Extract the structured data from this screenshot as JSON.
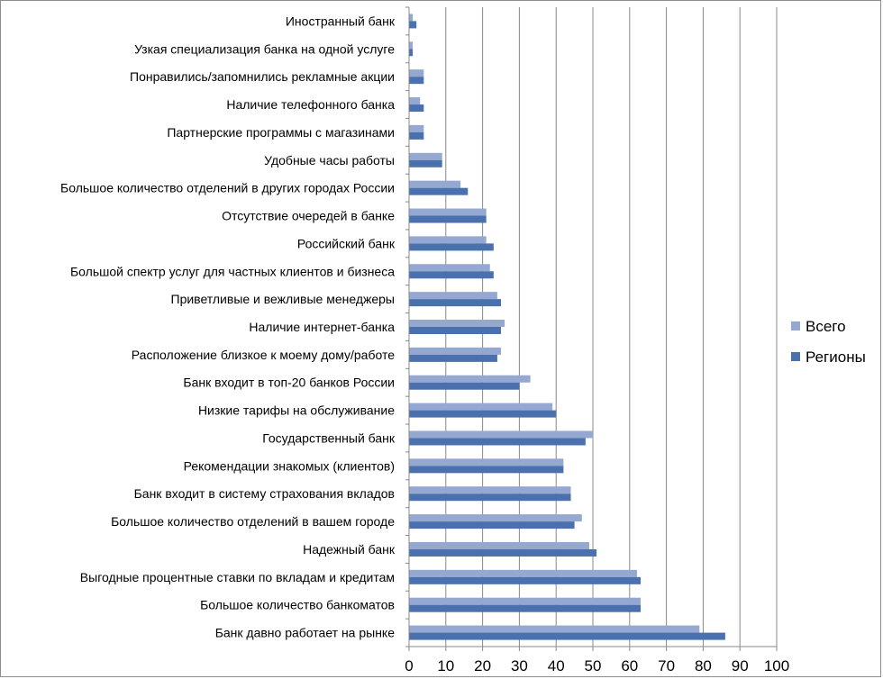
{
  "chart_data": {
    "type": "bar",
    "orientation": "horizontal",
    "categories": [
      "Иностранный банк",
      "Узкая специализация банка на одной услуге",
      "Понравились/запомнились рекламные акции",
      "Наличие телефонного банка",
      "Партнерские программы с магазинами",
      "Удобные часы работы",
      "Большое количество отделений в других городах России",
      "Отсутствие очередей в банке",
      "Российский банк",
      "Большой спектр услуг для частных клиентов и бизнеса",
      "Приветливые и вежливые менеджеры",
      "Наличие интернет-банка",
      "Расположение близкое к моему дому/работе",
      "Банк входит в топ-20 банков России",
      "Низкие тарифы на обслуживание",
      "Государственный банк",
      "Рекомендации знакомых (клиентов)",
      "Банк входит в систему страхования вкладов",
      "Большое количество отделений в вашем городе",
      "Надежный банк",
      "Выгодные процентные ставки по вкладам и кредитам",
      "Большое количество банкоматов",
      "Банк давно работает на рынке"
    ],
    "series": [
      {
        "name": "Всего",
        "color": "#94a8d2",
        "values": [
          1,
          1,
          4,
          3,
          4,
          9,
          14,
          21,
          21,
          22,
          24,
          26,
          25,
          33,
          39,
          50,
          42,
          44,
          47,
          49,
          62,
          63,
          79
        ]
      },
      {
        "name": "Регионы",
        "color": "#4a70ad",
        "values": [
          2,
          1,
          4,
          4,
          4,
          9,
          16,
          21,
          23,
          23,
          25,
          25,
          24,
          30,
          40,
          48,
          42,
          44,
          45,
          51,
          63,
          63,
          86
        ]
      }
    ],
    "xlim": [
      0,
      100
    ],
    "xticks": [
      "0",
      "10",
      "20",
      "30",
      "40",
      "50",
      "60",
      "70",
      "80",
      "90",
      "100"
    ],
    "grid": "vertical",
    "legend_position": "right",
    "title": "",
    "xlabel": "",
    "ylabel": ""
  }
}
